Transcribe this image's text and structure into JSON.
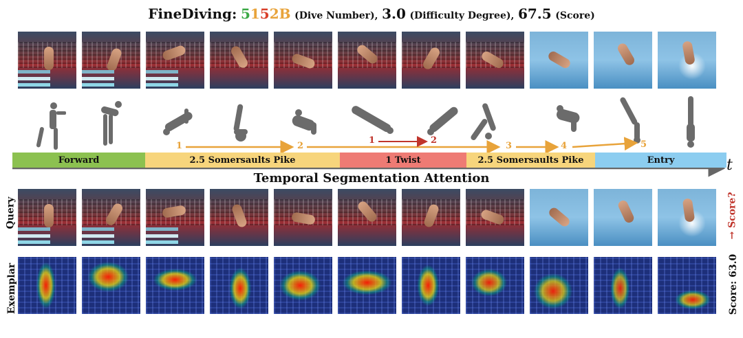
{
  "title": {
    "dataset": "FineDiving:",
    "dive_digit1": "5",
    "dive_digit2": "1",
    "dive_digit3": "5",
    "dive_digit4": "2",
    "dive_letter": "B",
    "dive_caption": "(Dive Number),",
    "difficulty_value": "3.0",
    "difficulty_caption": "(Difficulty Degree),",
    "score_value": "67.5",
    "score_caption": "(Score)"
  },
  "timeline": {
    "phases": [
      {
        "label": "Forward",
        "color": "#8cc150"
      },
      {
        "label": "2.5 Somersaults Pike",
        "color": "#f7d57c"
      },
      {
        "label": "1 Twist",
        "color": "#ee7b74"
      },
      {
        "label": "2.5 Somersaults Pike",
        "color": "#f7d57c"
      },
      {
        "label": "Entry",
        "color": "#8ccdf0"
      }
    ],
    "axis_label": "t",
    "arrow_labels": [
      "1",
      "2",
      "1",
      "2",
      "3",
      "4",
      "5"
    ]
  },
  "section_title": "Temporal Segmentation Attention",
  "rows": {
    "query_label": "Query",
    "exemplar_label": "Exemplar",
    "query_score": "→ Score?",
    "exemplar_score": "Score: 63.0"
  },
  "colors": {
    "orange_arrow": "#e8a33a",
    "red_arrow": "#c0352c",
    "silhouette": "#6b6b6b"
  }
}
